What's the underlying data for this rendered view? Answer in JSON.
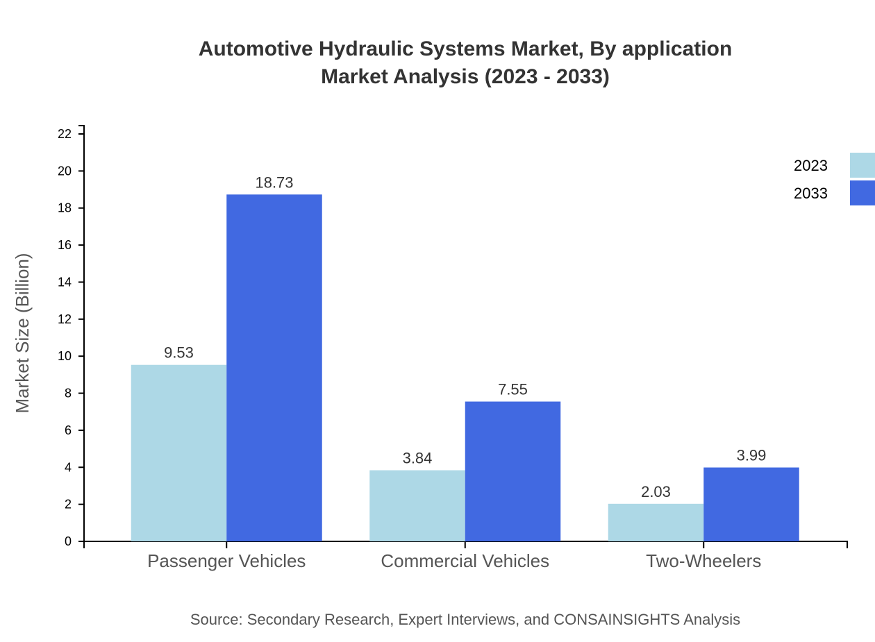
{
  "chart_data": {
    "type": "bar",
    "title": "Automotive Hydraulic Systems Market, By application",
    "subtitle": "Market Analysis (2023 - 2033)",
    "xlabel": "",
    "ylabel": "Market Size (Billion)",
    "ylim": [
      0,
      22.45
    ],
    "yticks": [
      0,
      2,
      4,
      6,
      8,
      10,
      12,
      14,
      16,
      18,
      20,
      22
    ],
    "grid": false,
    "legend_position": "top-right",
    "categories": [
      "Passenger Vehicles",
      "Commercial Vehicles",
      "Two-Wheelers"
    ],
    "series": [
      {
        "name": "2023",
        "color": "#add8e6",
        "values": [
          9.53,
          3.84,
          2.03
        ],
        "labels": [
          "9.53",
          "3.84",
          "2.03"
        ]
      },
      {
        "name": "2033",
        "color": "#4169e1",
        "values": [
          18.73,
          7.55,
          3.99
        ],
        "labels": [
          "18.73",
          "7.55",
          "3.99"
        ]
      }
    ],
    "source": "Source: Secondary Research, Expert Interviews, and CONSAINSIGHTS Analysis"
  }
}
